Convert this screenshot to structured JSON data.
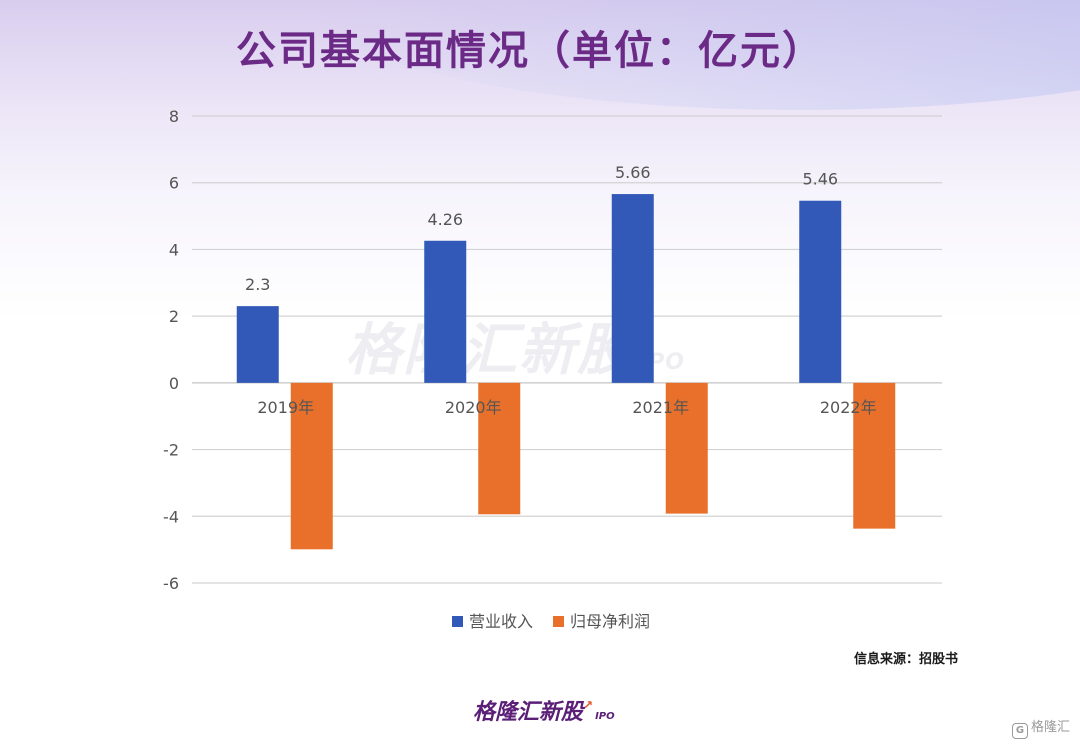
{
  "title": "公司基本面情况（单位：亿元）",
  "watermark": {
    "text": "格隆汇新股",
    "suffix": "IPO"
  },
  "source": "信息来源：招股书",
  "bottom_logo": {
    "text": "格隆汇新股",
    "suffix": "IPO"
  },
  "corner_mark": {
    "icon": "G",
    "text": "格隆汇"
  },
  "chart_data": {
    "type": "bar",
    "categories": [
      "2019年",
      "2020年",
      "2021年",
      "2022年"
    ],
    "series": [
      {
        "name": "营业收入",
        "color": "#3259b8",
        "values": [
          2.3,
          4.26,
          5.66,
          5.46
        ],
        "show_labels": true
      },
      {
        "name": "归母净利润",
        "color": "#e8702a",
        "values": [
          -4.99,
          -3.94,
          -3.92,
          -4.37
        ],
        "show_labels": false
      }
    ],
    "ylim": [
      -6,
      8
    ],
    "yticks": [
      8,
      6,
      4,
      2,
      0,
      -2,
      -4,
      -6
    ],
    "grid": true,
    "legend": "bottom"
  }
}
